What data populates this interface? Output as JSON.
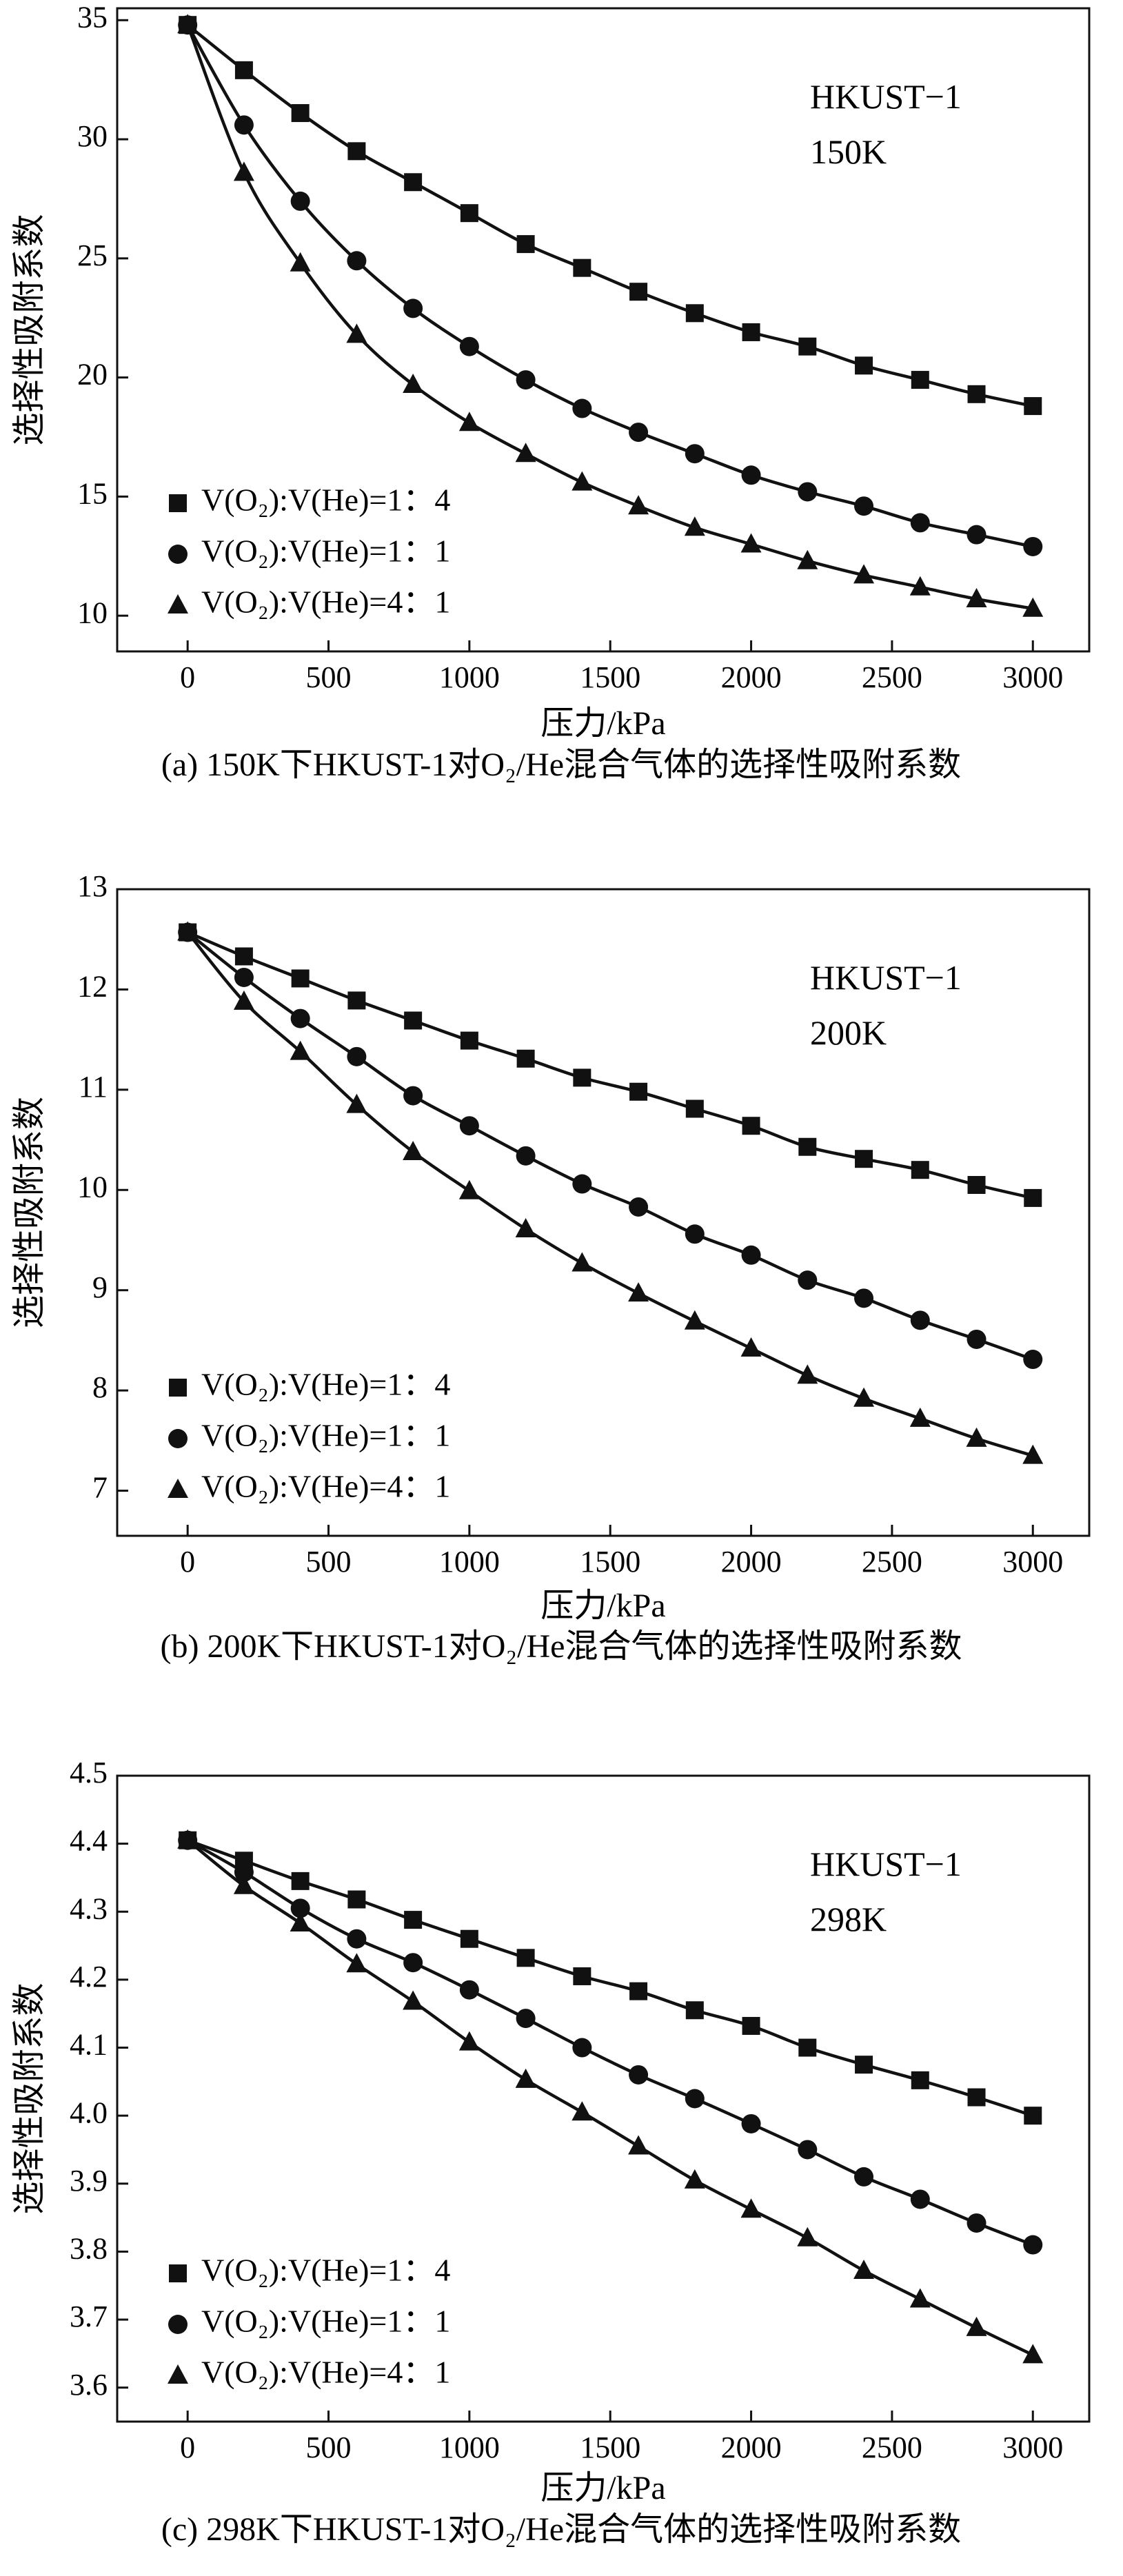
{
  "chart_data": [
    {
      "type": "scatter",
      "annotation": [
        "HKUST−1",
        "150K"
      ],
      "xlabel": "压力/kPa",
      "ylabel": "选择性吸附系数",
      "caption": "(a) 150K下HKUST-1对O₂/He混合气体的选择性吸附系数",
      "xlim": [
        -250,
        3200
      ],
      "ylim": [
        8.5,
        35.5
      ],
      "xticks": [
        0,
        500,
        1000,
        1500,
        2000,
        2500,
        3000
      ],
      "xtick_labels": [
        "0",
        "500",
        "1000",
        "1500",
        "2000",
        "2500",
        "3000"
      ],
      "yticks": [
        10,
        15,
        20,
        25,
        30,
        35
      ],
      "ytick_labels": [
        "10",
        "15",
        "20",
        "25",
        "30",
        "35"
      ],
      "x": [
        0,
        200,
        400,
        600,
        800,
        1000,
        1200,
        1400,
        1600,
        1800,
        2000,
        2200,
        2400,
        2600,
        2800,
        3000
      ],
      "series": [
        {
          "name": "V(O₂):V(He)=1：4",
          "marker": "square",
          "values": [
            34.8,
            32.9,
            31.1,
            29.5,
            28.2,
            26.9,
            25.6,
            24.6,
            23.6,
            22.7,
            21.9,
            21.3,
            20.5,
            19.9,
            19.3,
            18.8
          ]
        },
        {
          "name": "V(O₂):V(He)=1：1",
          "marker": "circle",
          "values": [
            34.8,
            30.6,
            27.4,
            24.9,
            22.9,
            21.3,
            19.9,
            18.7,
            17.7,
            16.8,
            15.9,
            15.2,
            14.6,
            13.9,
            13.4,
            12.9
          ]
        },
        {
          "name": "V(O₂):V(He)=4：1",
          "marker": "triangle",
          "values": [
            34.8,
            28.6,
            24.8,
            21.8,
            19.7,
            18.1,
            16.8,
            15.6,
            14.6,
            13.7,
            13.0,
            12.3,
            11.7,
            11.2,
            10.7,
            10.3
          ]
        }
      ]
    },
    {
      "type": "scatter",
      "annotation": [
        "HKUST−1",
        "200K"
      ],
      "xlabel": "压力/kPa",
      "ylabel": "选择性吸附系数",
      "caption": "(b) 200K下HKUST-1对O₂/He混合气体的选择性吸附系数",
      "xlim": [
        -250,
        3200
      ],
      "ylim": [
        6.55,
        13.0
      ],
      "xticks": [
        0,
        500,
        1000,
        1500,
        2000,
        2500,
        3000
      ],
      "xtick_labels": [
        "0",
        "500",
        "1000",
        "1500",
        "2000",
        "2500",
        "3000"
      ],
      "yticks": [
        7,
        8,
        9,
        10,
        11,
        12,
        13
      ],
      "ytick_labels": [
        "7",
        "8",
        "9",
        "10",
        "11",
        "12",
        "13"
      ],
      "x": [
        0,
        200,
        400,
        600,
        800,
        1000,
        1200,
        1400,
        1600,
        1800,
        2000,
        2200,
        2400,
        2600,
        2800,
        3000
      ],
      "series": [
        {
          "name": "V(O₂):V(He)=1：4",
          "marker": "square",
          "values": [
            12.57,
            12.33,
            12.11,
            11.89,
            11.69,
            11.49,
            11.31,
            11.12,
            10.98,
            10.81,
            10.64,
            10.43,
            10.31,
            10.2,
            10.05,
            9.92
          ]
        },
        {
          "name": "V(O₂):V(He)=1：1",
          "marker": "circle",
          "values": [
            12.57,
            12.12,
            11.71,
            11.33,
            10.94,
            10.64,
            10.34,
            10.06,
            9.83,
            9.56,
            9.35,
            9.1,
            8.92,
            8.7,
            8.51,
            8.31
          ]
        },
        {
          "name": "V(O₂):V(He)=4：1",
          "marker": "triangle",
          "values": [
            12.57,
            11.88,
            11.38,
            10.85,
            10.38,
            9.99,
            9.61,
            9.27,
            8.97,
            8.69,
            8.42,
            8.15,
            7.92,
            7.72,
            7.52,
            7.35
          ]
        }
      ]
    },
    {
      "type": "scatter",
      "annotation": [
        "HKUST−1",
        "298K"
      ],
      "xlabel": "压力/kPa",
      "ylabel": "选择性吸附系数",
      "caption": "(c) 298K下HKUST-1对O₂/He混合气体的选择性吸附系数",
      "xlim": [
        -250,
        3200
      ],
      "ylim": [
        3.55,
        4.5
      ],
      "xticks": [
        0,
        500,
        1000,
        1500,
        2000,
        2500,
        3000
      ],
      "xtick_labels": [
        "0",
        "500",
        "1000",
        "1500",
        "2000",
        "2500",
        "3000"
      ],
      "yticks": [
        3.6,
        3.7,
        3.8,
        3.9,
        4.0,
        4.1,
        4.2,
        4.3,
        4.4,
        4.5
      ],
      "ytick_labels": [
        "3.6",
        "3.7",
        "3.8",
        "3.9",
        "4.0",
        "4.1",
        "4.2",
        "4.3",
        "4.4",
        "4.5"
      ],
      "x": [
        0,
        200,
        400,
        600,
        800,
        1000,
        1200,
        1400,
        1600,
        1800,
        2000,
        2200,
        2400,
        2600,
        2800,
        3000
      ],
      "series": [
        {
          "name": "V(O₂):V(He)=1：4",
          "marker": "square",
          "values": [
            4.405,
            4.375,
            4.345,
            4.318,
            4.288,
            4.26,
            4.232,
            4.205,
            4.183,
            4.155,
            4.132,
            4.1,
            4.075,
            4.052,
            4.027,
            4.0
          ]
        },
        {
          "name": "V(O₂):V(He)=1：1",
          "marker": "circle",
          "values": [
            4.405,
            4.358,
            4.305,
            4.26,
            4.225,
            4.185,
            4.143,
            4.1,
            4.06,
            4.025,
            3.988,
            3.95,
            3.91,
            3.877,
            3.842,
            3.81
          ]
        },
        {
          "name": "V(O₂):V(He)=4：1",
          "marker": "triangle",
          "values": [
            4.405,
            4.338,
            4.283,
            4.223,
            4.168,
            4.108,
            4.053,
            4.005,
            3.955,
            3.905,
            3.862,
            3.82,
            3.772,
            3.73,
            3.688,
            3.648
          ]
        }
      ]
    }
  ]
}
